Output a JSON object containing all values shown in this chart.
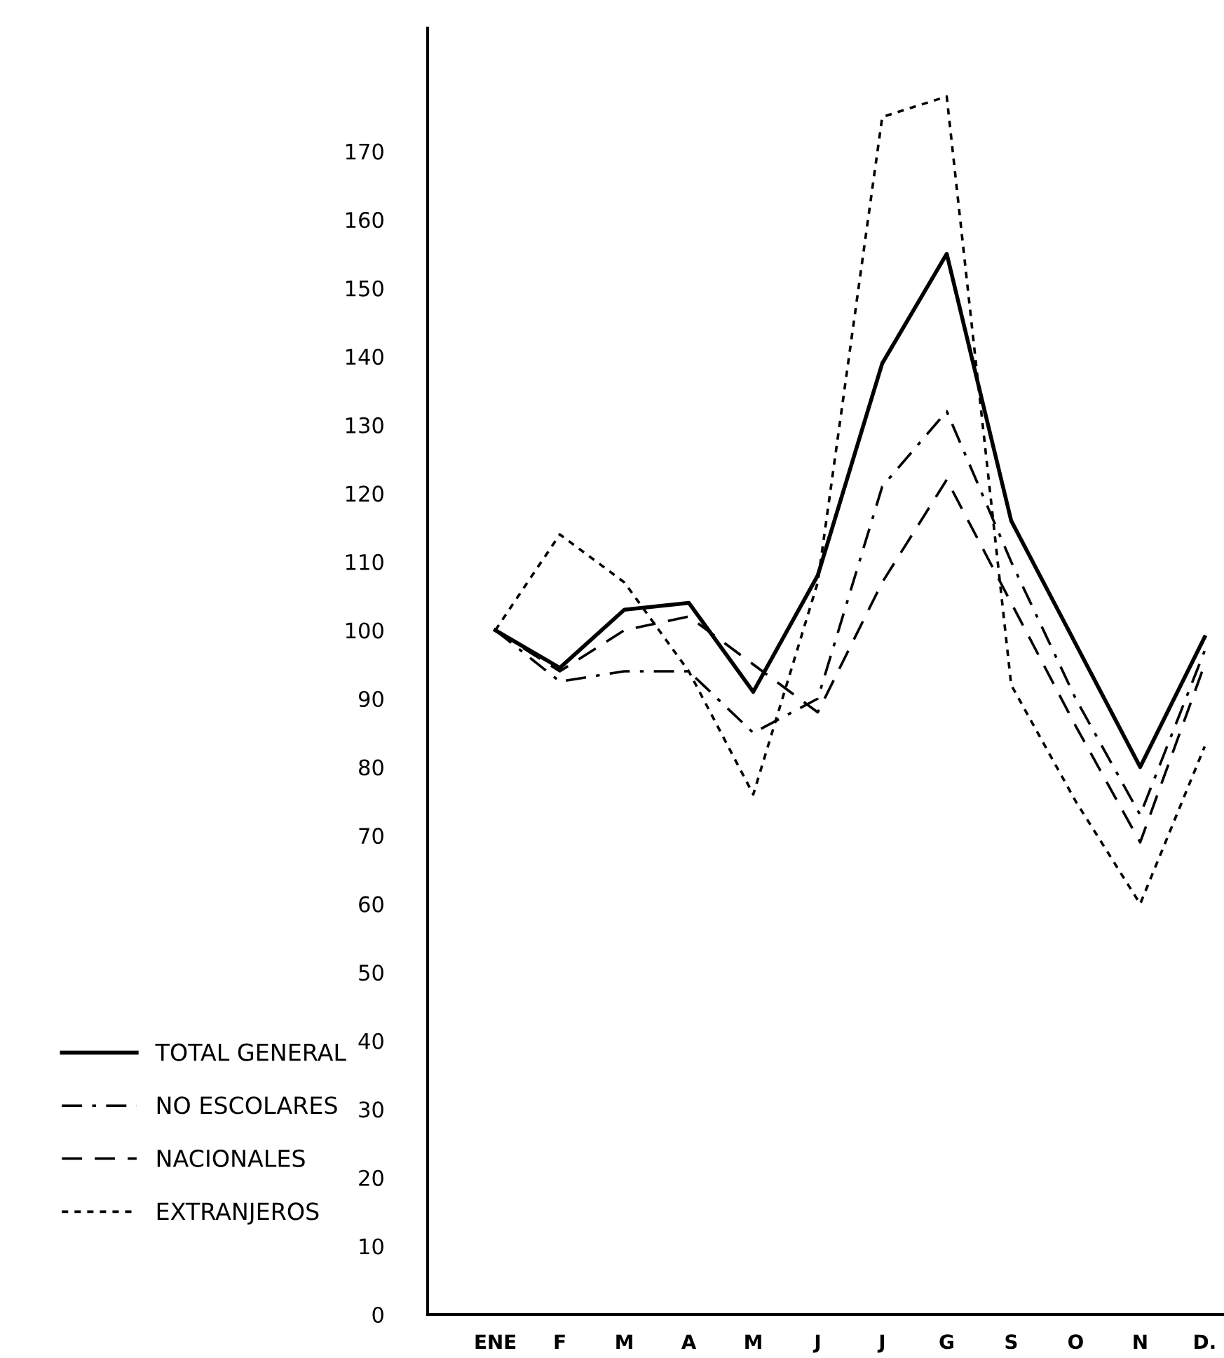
{
  "chart_data": {
    "type": "line",
    "categories": [
      "ENE",
      "F",
      "M",
      "A",
      "M",
      "J",
      "J",
      "G",
      "S",
      "O",
      "N",
      "D."
    ],
    "series": [
      {
        "name": "TOTAL GENERAL",
        "color": "#000000",
        "line_style": "solid",
        "values": [
          100,
          94.5,
          103,
          104,
          91,
          108,
          139,
          155,
          116,
          98,
          80,
          99
        ]
      },
      {
        "name": "NO ESCOLARES",
        "color": "#000000",
        "line_style": "dashdot",
        "values": [
          100,
          92.5,
          94,
          94,
          85,
          90,
          121,
          132,
          110,
          90,
          73,
          97
        ]
      },
      {
        "name": "NACIONALES",
        "color": "#000000",
        "line_style": "dashed",
        "values": [
          100,
          94,
          100,
          102,
          95,
          88,
          107,
          122,
          104,
          86,
          69,
          95
        ]
      },
      {
        "name": "EXTRANJEROS",
        "color": "#000000",
        "line_style": "dotted",
        "values": [
          100,
          114,
          107,
          94,
          76,
          107,
          175,
          178,
          92,
          75,
          60,
          83
        ]
      }
    ],
    "ylim": [
      0,
      188
    ],
    "yticks": [
      0,
      10,
      20,
      30,
      40,
      50,
      60,
      70,
      80,
      90,
      100,
      110,
      120,
      130,
      140,
      150,
      160,
      170
    ],
    "grid": false,
    "legend": "left",
    "marker": "none"
  }
}
